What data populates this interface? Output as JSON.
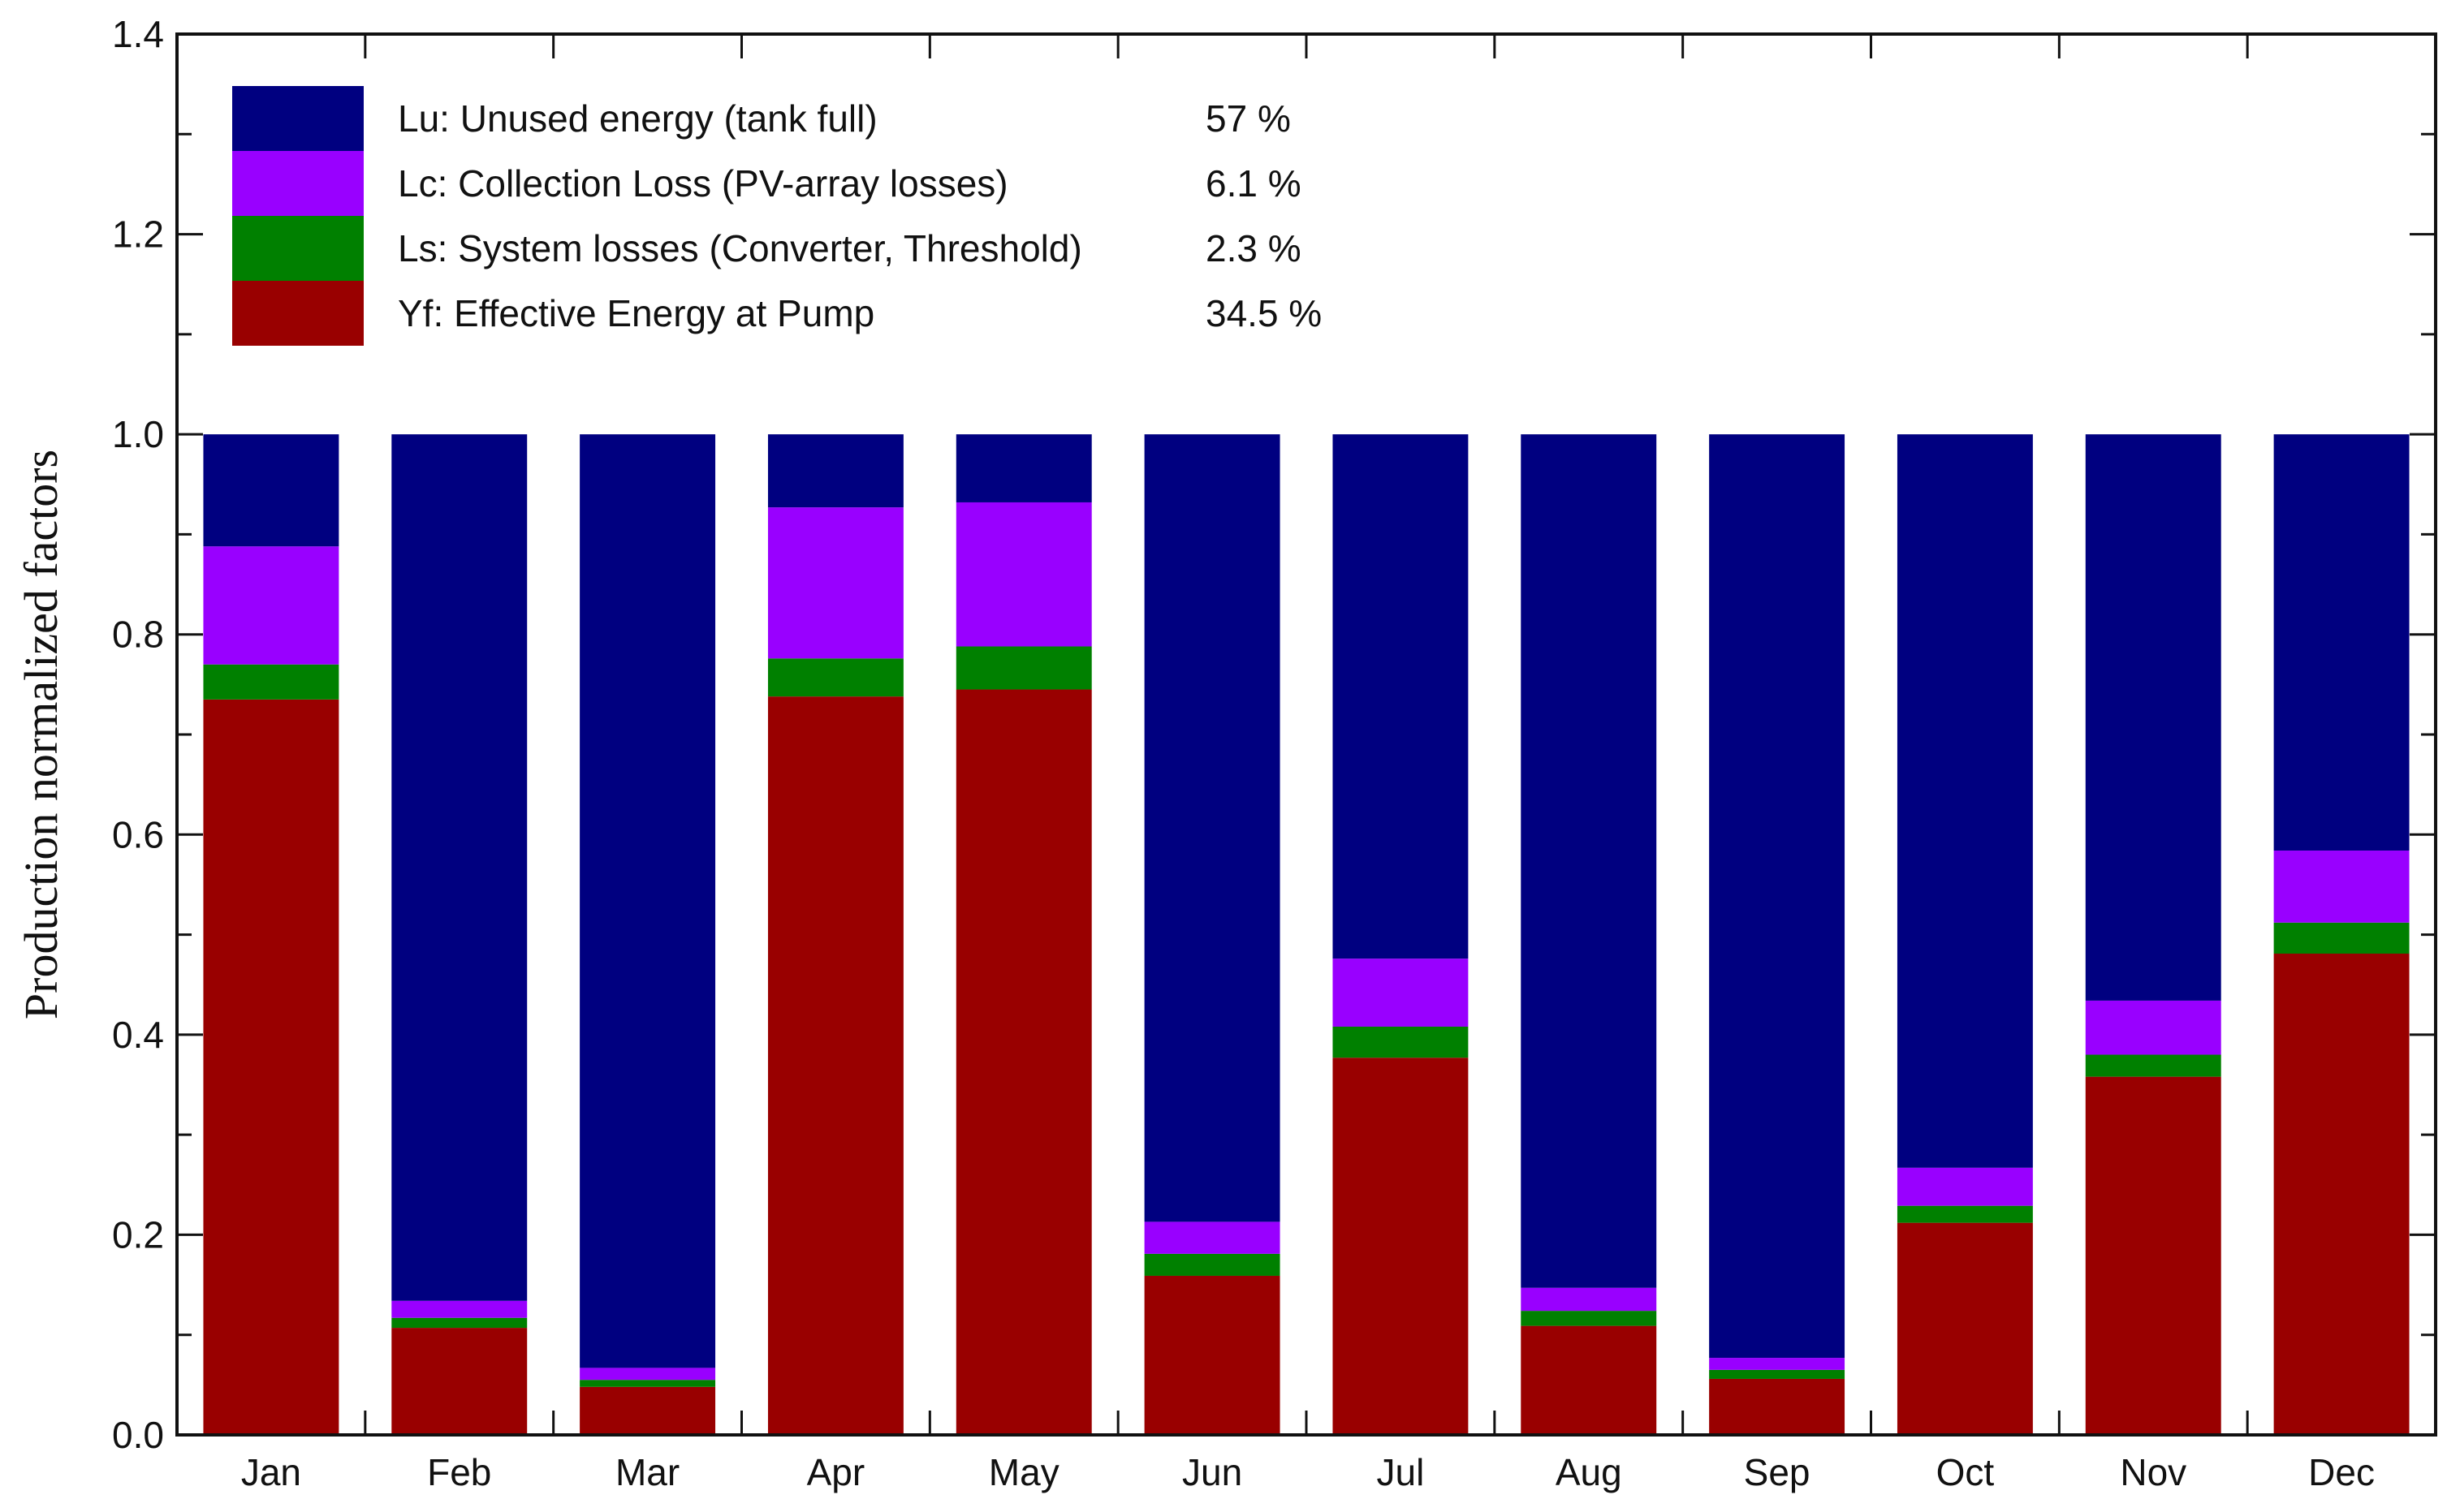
{
  "chart_data": {
    "type": "bar",
    "stacked": true,
    "title": "",
    "xlabel": "",
    "ylabel": "Production normalized factors",
    "ylim": [
      0,
      1.4
    ],
    "yticks": [
      "0.0",
      "0.2",
      "0.4",
      "0.6",
      "0.8",
      "1.0",
      "1.2",
      "1.4"
    ],
    "grid": false,
    "legend_position": "top-left",
    "categories": [
      "Jan",
      "Feb",
      "Mar",
      "Apr",
      "May",
      "Jun",
      "Jul",
      "Aug",
      "Sep",
      "Oct",
      "Nov",
      "Dec"
    ],
    "series": [
      {
        "name": "Yf: Effective Energy at Pump",
        "share": "34.5 %",
        "color": "#990000",
        "values": [
          0.735,
          0.107,
          0.048,
          0.738,
          0.745,
          0.159,
          0.377,
          0.109,
          0.056,
          0.212,
          0.358,
          0.481
        ]
      },
      {
        "name": "Ls: System losses (Converter, Threshold)",
        "share": "2.3 %",
        "color": "#008000",
        "values": [
          0.035,
          0.01,
          0.007,
          0.038,
          0.043,
          0.022,
          0.031,
          0.015,
          0.009,
          0.017,
          0.022,
          0.031
        ]
      },
      {
        "name": "Lc: Collection Loss (PV-array losses)",
        "share": "6.1 %",
        "color": "#9900ff",
        "values": [
          0.118,
          0.017,
          0.012,
          0.151,
          0.144,
          0.032,
          0.068,
          0.023,
          0.012,
          0.038,
          0.054,
          0.072
        ]
      },
      {
        "name": "Lu: Unused energy (tank full)",
        "share": "57 %",
        "color": "#000080",
        "values": [
          0.112,
          0.866,
          0.933,
          0.073,
          0.068,
          0.787,
          0.524,
          0.853,
          0.923,
          0.733,
          0.566,
          0.416
        ]
      }
    ],
    "legend_order": [
      3,
      2,
      1,
      0
    ]
  }
}
